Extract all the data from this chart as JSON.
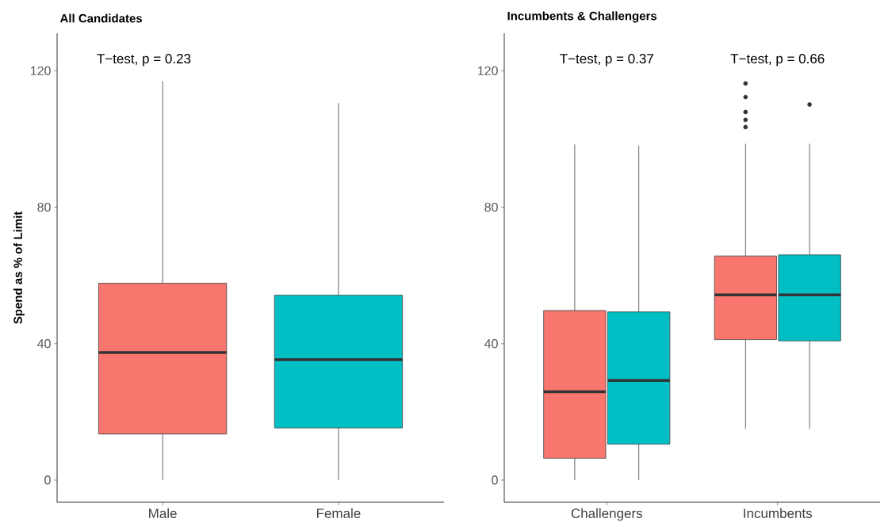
{
  "chart_data": [
    {
      "type": "box",
      "title": "All Candidates",
      "ylabel": "Spend as % of Limit",
      "categories": [
        "Male",
        "Female"
      ],
      "colors": [
        "#f8766d",
        "#00bfc4"
      ],
      "boxes": [
        {
          "low": 0,
          "q1": 13.5,
          "median": 37.4,
          "q3": 57.7,
          "high": 117
        },
        {
          "low": 0,
          "q1": 15.3,
          "median": 35.3,
          "q3": 54.2,
          "high": 110.5
        }
      ],
      "ylim": [
        -6.5,
        131
      ],
      "yticks": [
        0,
        40,
        80,
        120
      ],
      "annotations": [
        "T−test, p = 0.23"
      ]
    },
    {
      "type": "box",
      "title": "Incumbents & Challengers",
      "categories": [
        "Challengers",
        "Incumbents"
      ],
      "series": [
        {
          "color": "#f8766d",
          "boxes": [
            {
              "low": 0,
              "q1": 6.4,
              "median": 25.9,
              "q3": 49.7,
              "high": 98.4
            },
            {
              "low": 15,
              "q1": 41.2,
              "median": 54.3,
              "q3": 65.7,
              "high": 98.6,
              "outliers": [
                103.5,
                105.6,
                107.9,
                112.3,
                116.3
              ]
            }
          ]
        },
        {
          "color": "#00bfc4",
          "boxes": [
            {
              "low": 0,
              "q1": 10.5,
              "median": 29.2,
              "q3": 49.3,
              "high": 98.1
            },
            {
              "low": 15,
              "q1": 40.8,
              "median": 54.3,
              "q3": 66.0,
              "high": 98.6,
              "outliers": [
                110.1
              ]
            }
          ]
        }
      ],
      "ylim": [
        -6.5,
        131
      ],
      "yticks": [
        0,
        40,
        80,
        120
      ],
      "annotations": [
        "T−test, p = 0.37",
        "T−test, p = 0.66"
      ]
    }
  ]
}
